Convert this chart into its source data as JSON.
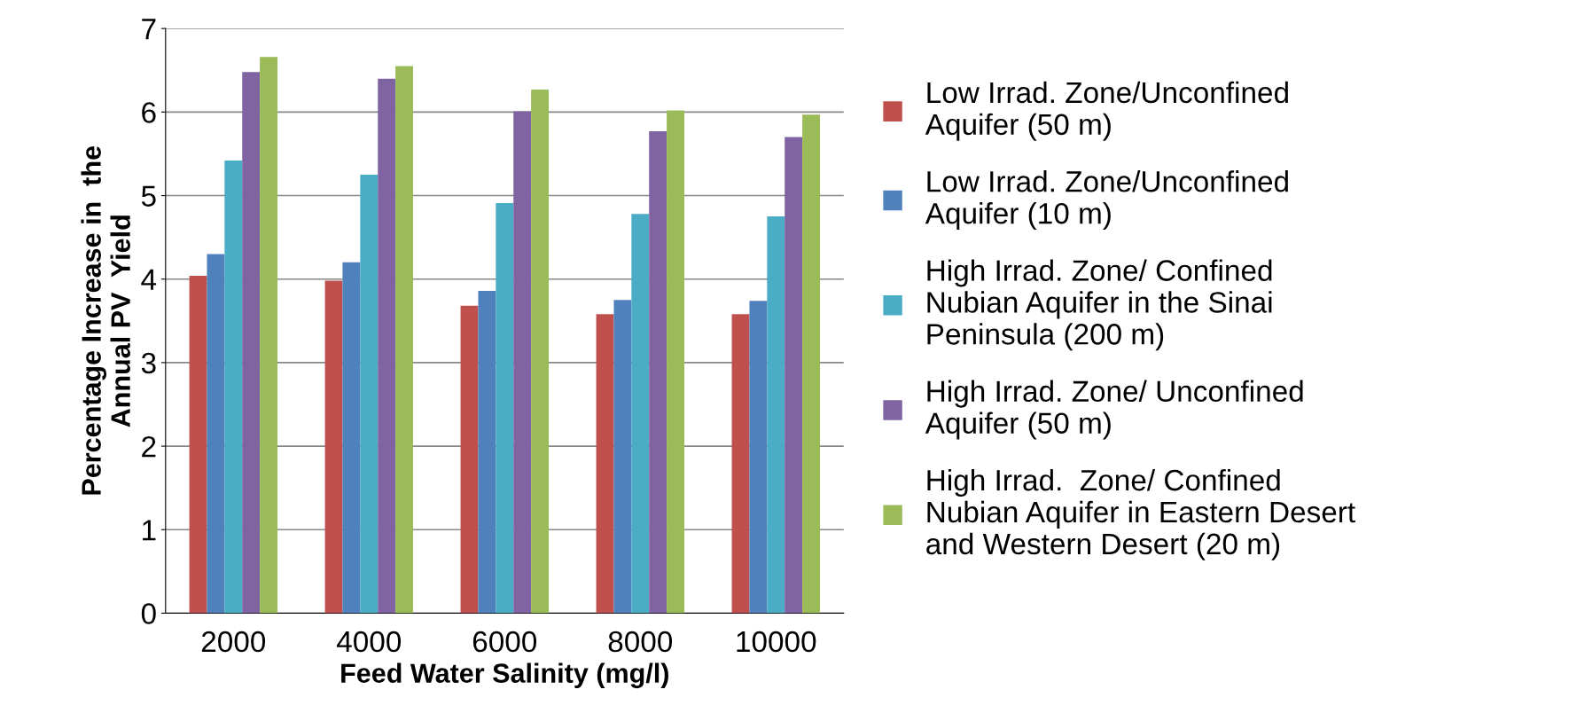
{
  "chart_data": {
    "type": "bar",
    "xlabel": "Feed Water Salinity (mg/l)",
    "ylabel": "Percentage Increase in  the\nAnnual PV  Yield",
    "categories": [
      "2000",
      "4000",
      "6000",
      "8000",
      "10000"
    ],
    "series": [
      {
        "name": "Low Irrad. Zone/Unconfined\nAquifer (50 m)",
        "color": "#c0504d",
        "values": [
          4.04,
          3.98,
          3.68,
          3.58,
          3.58
        ]
      },
      {
        "name": "Low Irrad. Zone/Unconfined\nAquifer (10 m)",
        "color": "#4f81bd",
        "values": [
          4.3,
          4.2,
          3.86,
          3.75,
          3.74
        ]
      },
      {
        "name": "High Irrad. Zone/ Confined\nNubian Aquifer in the Sinai\nPeninsula (200 m)",
        "color": "#4bacc6",
        "values": [
          5.42,
          5.25,
          4.91,
          4.78,
          4.75
        ]
      },
      {
        "name": "High Irrad. Zone/ Unconfined\nAquifer (50 m)",
        "color": "#8064a2",
        "values": [
          6.48,
          6.4,
          6.01,
          5.77,
          5.7
        ]
      },
      {
        "name": "High Irrad.  Zone/ Confined\nNubian Aquifer in Eastern Desert\nand Western Desert (20 m)",
        "color": "#9bbb59",
        "values": [
          6.66,
          6.55,
          6.27,
          6.02,
          5.97
        ]
      }
    ],
    "ylim": [
      0,
      7
    ],
    "yticks": [
      0,
      1,
      2,
      3,
      4,
      5,
      6,
      7
    ],
    "grid": "y",
    "legend": "right"
  }
}
